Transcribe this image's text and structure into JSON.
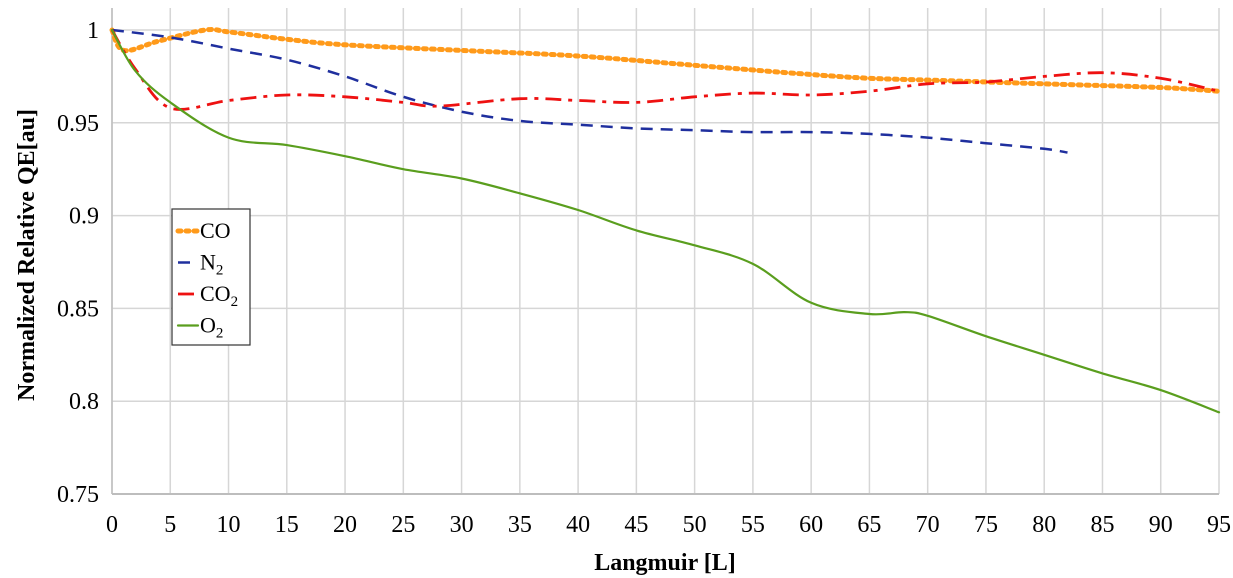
{
  "chart_data": {
    "type": "line",
    "title": "",
    "xlabel": "Langmuir [L]",
    "ylabel": "Normalized Relative QE[au]",
    "xlim": [
      0,
      95
    ],
    "ylim": [
      0.75,
      1.0
    ],
    "x_ticks": [
      0,
      5,
      10,
      15,
      20,
      25,
      30,
      35,
      40,
      45,
      50,
      55,
      60,
      65,
      70,
      75,
      80,
      85,
      90,
      95
    ],
    "y_ticks": [
      0.75,
      0.8,
      0.85,
      0.9,
      0.95,
      1
    ],
    "x_tick_labels": [
      "0",
      "5",
      "10",
      "15",
      "20",
      "25",
      "30",
      "35",
      "40",
      "45",
      "50",
      "55",
      "60",
      "65",
      "70",
      "75",
      "80",
      "85",
      "90",
      "95"
    ],
    "y_tick_labels": [
      "0.75",
      "0.8",
      "0.85",
      "0.9",
      "0.95",
      "1"
    ],
    "grid": true,
    "legend_position": "middle-left",
    "series": [
      {
        "name": "CO",
        "legend_base": "CO",
        "legend_sub": "",
        "color": "#ff9a1a",
        "style": "dotted",
        "x": [
          0,
          1,
          4,
          8,
          10,
          15,
          20,
          30,
          40,
          50,
          60,
          65,
          70,
          80,
          90,
          95
        ],
        "y": [
          1.0,
          0.989,
          0.994,
          1.0,
          0.999,
          0.995,
          0.992,
          0.989,
          0.986,
          0.981,
          0.976,
          0.974,
          0.973,
          0.971,
          0.969,
          0.967
        ]
      },
      {
        "name": "N2",
        "legend_base": "N",
        "legend_sub": "2",
        "color": "#1f2f9e",
        "style": "dashed",
        "x": [
          0,
          5,
          10,
          15,
          20,
          25,
          30,
          35,
          40,
          45,
          50,
          55,
          60,
          65,
          70,
          75,
          80,
          82
        ],
        "y": [
          1.0,
          0.996,
          0.99,
          0.984,
          0.975,
          0.964,
          0.956,
          0.951,
          0.949,
          0.947,
          0.946,
          0.945,
          0.945,
          0.944,
          0.942,
          0.939,
          0.936,
          0.934
        ]
      },
      {
        "name": "CO2",
        "legend_base": "CO",
        "legend_sub": "2",
        "color": "#ee1111",
        "style": "dashdot",
        "x": [
          0,
          2,
          5,
          10,
          15,
          20,
          25,
          28,
          35,
          40,
          45,
          50,
          55,
          60,
          65,
          70,
          75,
          80,
          85,
          90,
          95
        ],
        "y": [
          1.0,
          0.979,
          0.958,
          0.962,
          0.965,
          0.964,
          0.961,
          0.959,
          0.963,
          0.962,
          0.961,
          0.964,
          0.966,
          0.965,
          0.967,
          0.971,
          0.972,
          0.975,
          0.977,
          0.974,
          0.967
        ]
      },
      {
        "name": "O2",
        "legend_base": "O",
        "legend_sub": "2",
        "color": "#5a9e1e",
        "style": "solid",
        "x": [
          0,
          2,
          5,
          10,
          15,
          20,
          25,
          30,
          35,
          40,
          45,
          50,
          55,
          60,
          65,
          68,
          70,
          75,
          80,
          85,
          90,
          95
        ],
        "y": [
          1.0,
          0.978,
          0.961,
          0.942,
          0.938,
          0.932,
          0.925,
          0.92,
          0.912,
          0.903,
          0.892,
          0.884,
          0.874,
          0.853,
          0.847,
          0.848,
          0.846,
          0.835,
          0.825,
          0.815,
          0.806,
          0.794
        ]
      }
    ]
  }
}
